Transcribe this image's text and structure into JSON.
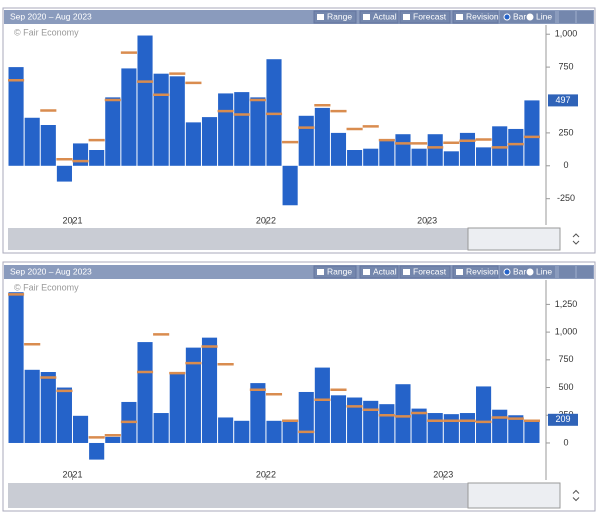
{
  "chart_data": [
    {
      "type": "bar",
      "date_range": "Sep 2020 – Aug 2023",
      "watermark": "© Fair Economy",
      "controls": {
        "range": "Range",
        "revision": "Revision",
        "bar": "Bar",
        "line": "Line"
      },
      "categories": [
        null,
        null,
        null,
        null,
        "2021",
        null,
        null,
        null,
        null,
        null,
        null,
        null,
        null,
        null,
        null,
        null,
        "2022",
        null,
        null,
        null,
        null,
        null,
        null,
        null,
        null,
        null,
        "2023",
        null,
        null,
        null,
        null,
        null,
        null
      ],
      "series": [
        {
          "name": "Actual",
          "color": "#2563c9",
          "values": [
            750,
            365,
            310,
            -120,
            170,
            120,
            520,
            740,
            990,
            700,
            680,
            330,
            370,
            550,
            560,
            520,
            810,
            -300,
            380,
            440,
            250,
            120,
            130,
            200,
            240,
            130,
            240,
            110,
            250,
            140,
            300,
            280,
            497
          ]
        },
        {
          "name": "Forecast",
          "color": "#d98c4f",
          "values": [
            650,
            null,
            420,
            50,
            35,
            195,
            500,
            860,
            640,
            540,
            700,
            630,
            null,
            415,
            390,
            500,
            395,
            180,
            290,
            460,
            415,
            280,
            300,
            195,
            170,
            170,
            140,
            175,
            190,
            200,
            140,
            165,
            220
          ]
        }
      ],
      "ylim": [
        -450,
        1070
      ],
      "yticks": [
        {
          "value": 1000,
          "label": "1,000"
        },
        750,
        250,
        0,
        -250
      ],
      "current_value": 497
    },
    {
      "type": "bar",
      "date_range": "Sep 2020 – Aug 2023",
      "watermark": "© Fair Economy",
      "controls": {
        "range": "Range",
        "revision": "Revision",
        "bar": "Bar",
        "line": "Line"
      },
      "categories": [
        null,
        null,
        null,
        null,
        "2021",
        null,
        null,
        null,
        null,
        null,
        null,
        null,
        null,
        null,
        null,
        null,
        "2022",
        null,
        null,
        null,
        null,
        null,
        null,
        null,
        null,
        null,
        null,
        "2023",
        null,
        null,
        null,
        null,
        null
      ],
      "series": [
        {
          "name": "Actual",
          "color": "#2563c9",
          "values": [
            1360,
            660,
            640,
            500,
            245,
            -150,
            55,
            370,
            910,
            270,
            640,
            860,
            950,
            230,
            200,
            540,
            200,
            210,
            460,
            680,
            430,
            410,
            380,
            350,
            530,
            310,
            270,
            260,
            270,
            510,
            300,
            250,
            209
          ]
        },
        {
          "name": "Forecast",
          "color": "#d98c4f",
          "values": [
            1340,
            890,
            590,
            470,
            null,
            50,
            70,
            190,
            640,
            980,
            630,
            720,
            870,
            710,
            null,
            480,
            440,
            200,
            100,
            390,
            480,
            330,
            300,
            250,
            240,
            270,
            200,
            200,
            200,
            190,
            230,
            220,
            200
          ]
        }
      ],
      "ylim": [
        -334,
        1470
      ],
      "yticks": [
        {
          "value": 1250,
          "label": "1,250"
        },
        {
          "value": 1000,
          "label": "1,000"
        },
        750,
        500,
        250,
        0
      ],
      "current_value": 209
    }
  ]
}
